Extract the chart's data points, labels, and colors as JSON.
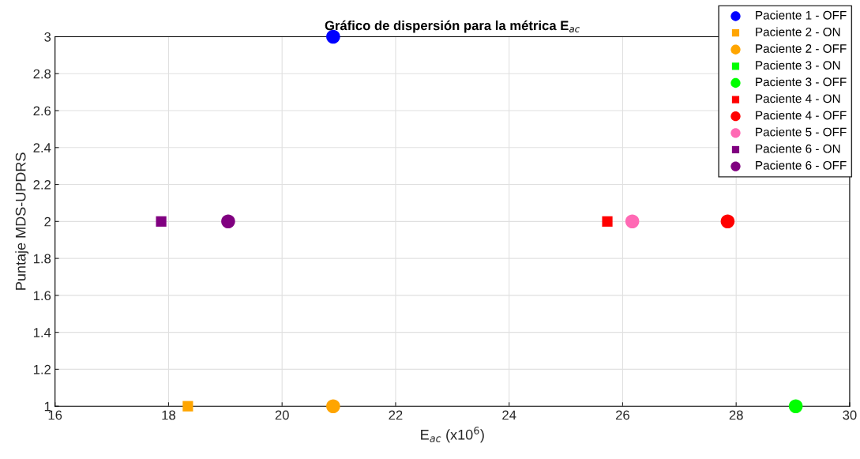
{
  "chart_data": {
    "type": "scatter",
    "title": "Gráfico de dispersión para la métrica E$_{ac}$",
    "xlabel": "E$_{ac}$ (x10$^{6}$)",
    "ylabel": "Puntaje MDS-UPDRS",
    "xlim": [
      16,
      30
    ],
    "xticks": [
      16,
      18,
      20,
      22,
      24,
      26,
      28,
      30
    ],
    "ylim": [
      1,
      3
    ],
    "yticks": [
      1,
      1.2,
      1.4,
      1.6,
      1.8,
      2,
      2.2,
      2.4,
      2.6,
      2.8,
      3
    ],
    "grid": true,
    "legend": "top right",
    "series": [
      {
        "name": "Paciente 1 - OFF",
        "color": "#0000ff",
        "marker": "circle",
        "x": [
          20.9
        ],
        "values": [
          3
        ]
      },
      {
        "name": "Paciente 2 - ON",
        "color": "#ffa500",
        "marker": "square",
        "x": [
          18.34
        ],
        "values": [
          1
        ]
      },
      {
        "name": "Paciente 2 - OFF",
        "color": "#ffa500",
        "marker": "circle",
        "x": [
          20.9
        ],
        "values": [
          1
        ]
      },
      {
        "name": "Paciente 3 - ON",
        "color": "#00ff00",
        "marker": "square"
      },
      {
        "name": "Paciente 3 - OFF",
        "color": "#00ff00",
        "marker": "circle",
        "x": [
          29.05
        ],
        "values": [
          1
        ]
      },
      {
        "name": "Paciente 4 - ON",
        "color": "#ff0000",
        "marker": "square",
        "x": [
          25.73
        ],
        "values": [
          2
        ]
      },
      {
        "name": "Paciente 4 - OFF",
        "color": "#ff0000",
        "marker": "circle",
        "x": [
          27.85
        ],
        "values": [
          2
        ]
      },
      {
        "name": "Paciente 5 - OFF",
        "color": "#ff69b4",
        "marker": "circle",
        "x": [
          26.17
        ],
        "values": [
          2
        ]
      },
      {
        "name": "Paciente 6 - ON",
        "color": "#800080",
        "marker": "square",
        "x": [
          17.87
        ],
        "values": [
          2
        ]
      },
      {
        "name": "Paciente 6 - OFF",
        "color": "#800080",
        "marker": "circle",
        "x": [
          19.05
        ],
        "values": [
          2
        ]
      }
    ]
  }
}
